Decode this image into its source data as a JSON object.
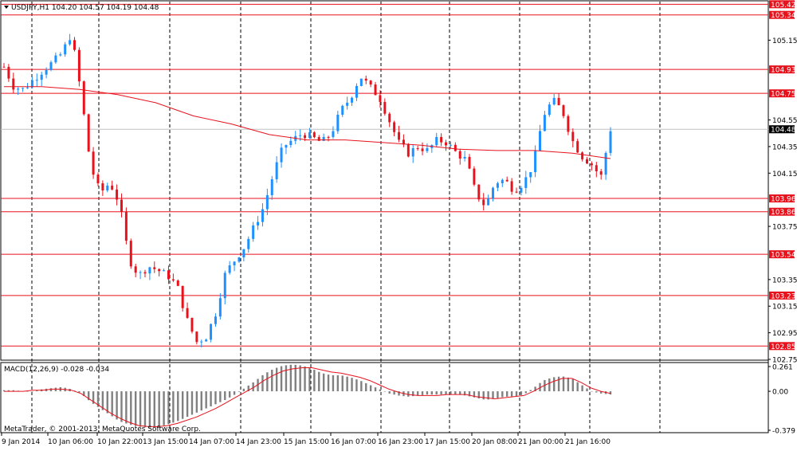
{
  "header": {
    "symbol_label": "USDJPY,H1  104.20 104.57 104.19 104.48"
  },
  "macd": {
    "label": "MACD(12,26,9) -0.028 -0.034"
  },
  "footer": {
    "copyright": "MetaTrader, © 2001-2013, MetaQuotes Software Corp."
  },
  "colors": {
    "bull": "#1e90ff",
    "bear": "#e8121d",
    "ma": "#e8121d",
    "level": "#e8121d",
    "signal": "#e8121d",
    "hist": "#808080",
    "grid": "#000000"
  },
  "chart_data": {
    "type": "candlestick",
    "ylim": [
      102.75,
      105.44
    ],
    "y_ticks": [
      "105.42",
      "105.34",
      "105.15",
      "104.93",
      "104.75",
      "104.55",
      "104.48",
      "104.35",
      "104.15",
      "103.96",
      "103.86",
      "103.75",
      "103.54",
      "103.35",
      "103.23",
      "103.15",
      "102.95",
      "102.85",
      "102.75"
    ],
    "levels": [
      105.42,
      105.34,
      104.93,
      104.75,
      103.96,
      103.86,
      103.54,
      103.23,
      102.85
    ],
    "level_labels": [
      "105.42",
      "105.34",
      "104.93",
      "104.75",
      "103.96",
      "103.86",
      "103.54",
      "103.23",
      "102.85"
    ],
    "current_price": 104.48,
    "current_price_label": "104.48",
    "plain_ticks": [
      "105.15",
      "104.55",
      "104.35",
      "104.15",
      "103.75",
      "103.35",
      "103.15",
      "102.95",
      "102.75"
    ],
    "plain_tick_values": [
      105.15,
      104.55,
      104.35,
      104.15,
      103.75,
      103.35,
      103.15,
      102.95,
      102.75
    ],
    "x_labels": [
      "9 Jan 2014",
      "10 Jan 06:00",
      "10 Jan 22:00",
      "13 Jan 15:00",
      "14 Jan 07:00",
      "14 Jan 23:00",
      "15 Jan 15:00",
      "16 Jan 07:00",
      "16 Jan 23:00",
      "17 Jan 15:00",
      "20 Jan 08:00",
      "21 Jan 00:00",
      "21 Jan 16:00"
    ],
    "price_path": [
      104.95,
      104.8,
      104.78,
      104.85,
      104.92,
      104.98,
      105.05,
      105.2,
      104.75,
      104.2,
      104.0,
      104.08,
      103.92,
      103.5,
      103.38,
      103.45,
      103.42,
      103.38,
      103.3,
      103.05,
      102.88,
      102.92,
      103.1,
      103.4,
      103.5,
      103.6,
      103.75,
      103.9,
      104.15,
      104.35,
      104.4,
      104.45,
      104.42,
      104.38,
      104.45,
      104.62,
      104.72,
      104.88,
      104.8,
      104.72,
      104.55,
      104.38,
      104.3,
      104.35,
      104.32,
      104.4,
      104.38,
      104.3,
      104.25,
      104.0,
      103.9,
      104.08,
      104.1,
      104.02,
      104.08,
      104.22,
      104.58,
      104.7,
      104.62,
      104.4,
      104.28,
      104.22,
      104.12,
      104.48
    ],
    "ma_path": [
      104.8,
      104.8,
      104.78,
      104.74,
      104.68,
      104.58,
      104.52,
      104.44,
      104.4,
      104.4,
      104.38,
      104.36,
      104.33,
      104.32,
      104.32,
      104.3,
      104.26
    ],
    "macd_ylim": [
      -0.379,
      0.261
    ],
    "macd_ticks": [
      "0.261",
      "0.00",
      "-0.379"
    ],
    "macd_tick_values": [
      0.261,
      0.0,
      -0.379
    ],
    "macd_hist": [
      0.01,
      0.01,
      0.0,
      0.0,
      0.02,
      0.03,
      0.04,
      0.02,
      -0.02,
      -0.1,
      -0.16,
      -0.22,
      -0.28,
      -0.31,
      -0.33,
      -0.34,
      -0.33,
      -0.31,
      -0.28,
      -0.24,
      -0.2,
      -0.16,
      -0.12,
      -0.08,
      -0.03,
      0.03,
      0.09,
      0.16,
      0.21,
      0.24,
      0.25,
      0.24,
      0.21,
      0.17,
      0.15,
      0.15,
      0.13,
      0.1,
      0.06,
      0.02,
      -0.02,
      -0.04,
      -0.05,
      -0.04,
      -0.03,
      -0.03,
      -0.03,
      -0.03,
      -0.04,
      -0.06,
      -0.08,
      -0.07,
      -0.05,
      -0.05,
      -0.03,
      0.03,
      0.1,
      0.13,
      0.14,
      0.12,
      0.06,
      0.0,
      -0.02,
      -0.03
    ],
    "macd_signal": [
      0.0,
      0.0,
      0.0,
      0.01,
      0.01,
      0.02,
      0.02,
      0.01,
      -0.02,
      -0.08,
      -0.14,
      -0.2,
      -0.25,
      -0.29,
      -0.32,
      -0.33,
      -0.33,
      -0.32,
      -0.3,
      -0.27,
      -0.24,
      -0.2,
      -0.16,
      -0.11,
      -0.06,
      -0.01,
      0.04,
      0.1,
      0.15,
      0.19,
      0.21,
      0.22,
      0.22,
      0.2,
      0.18,
      0.17,
      0.15,
      0.13,
      0.1,
      0.06,
      0.02,
      -0.01,
      -0.03,
      -0.04,
      -0.04,
      -0.04,
      -0.03,
      -0.03,
      -0.03,
      -0.05,
      -0.06,
      -0.07,
      -0.06,
      -0.05,
      -0.04,
      0.0,
      0.05,
      0.09,
      0.12,
      0.12,
      0.08,
      0.03,
      0.0,
      -0.02
    ]
  }
}
